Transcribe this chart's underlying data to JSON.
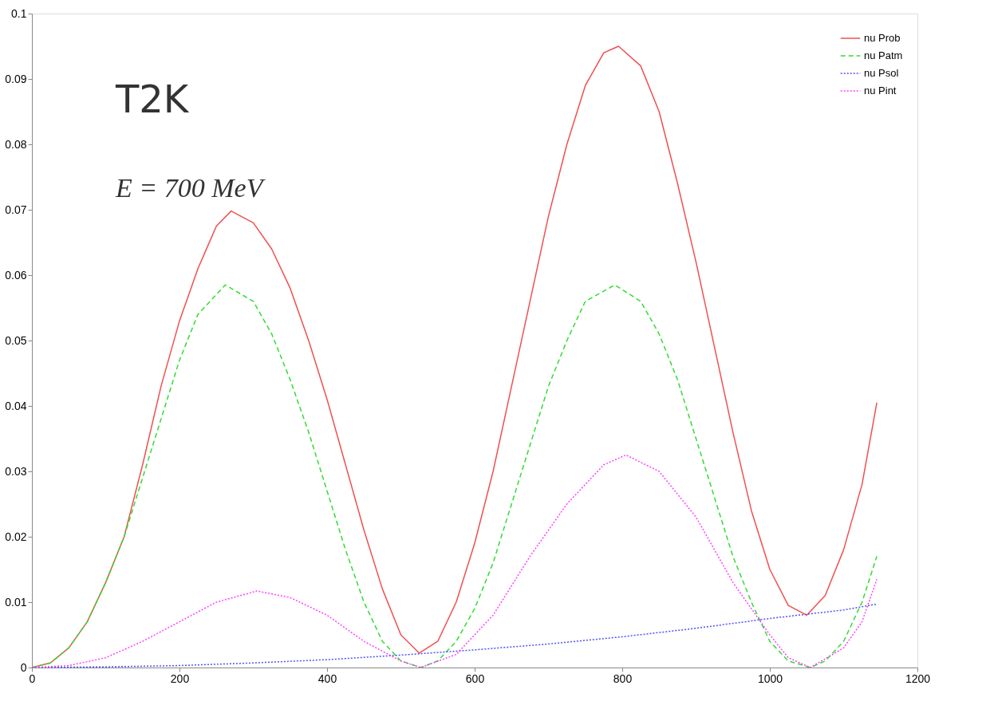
{
  "chart_data": {
    "type": "line",
    "annotations": [
      "T2K",
      "E = 700 MeV"
    ],
    "xlim": [
      0,
      1200
    ],
    "xticks": [
      0,
      200,
      400,
      600,
      800,
      1000,
      1200
    ],
    "ylim": [
      0,
      0.1
    ],
    "yticks": [
      0,
      0.01,
      0.02,
      0.03,
      0.04,
      0.05,
      0.06,
      0.07,
      0.08,
      0.09,
      0.1
    ],
    "grid": false,
    "legend": "top right",
    "marker": "none",
    "series": [
      {
        "name": "nu Prob",
        "color": "#f05050",
        "line_style": "solid",
        "x": [
          0,
          25,
          50,
          75,
          100,
          125,
          150,
          175,
          200,
          225,
          250,
          270,
          300,
          325,
          350,
          375,
          400,
          425,
          450,
          475,
          500,
          525,
          550,
          575,
          600,
          625,
          650,
          675,
          700,
          725,
          750,
          775,
          795,
          825,
          850,
          875,
          900,
          925,
          950,
          975,
          1000,
          1025,
          1050,
          1075,
          1100,
          1125,
          1145
        ],
        "values": [
          0,
          0.0007,
          0.003,
          0.007,
          0.013,
          0.02,
          0.031,
          0.043,
          0.053,
          0.061,
          0.0675,
          0.0698,
          0.068,
          0.064,
          0.058,
          0.05,
          0.041,
          0.031,
          0.021,
          0.012,
          0.005,
          0.0022,
          0.004,
          0.01,
          0.019,
          0.03,
          0.043,
          0.056,
          0.069,
          0.08,
          0.089,
          0.094,
          0.095,
          0.092,
          0.085,
          0.074,
          0.062,
          0.049,
          0.036,
          0.024,
          0.015,
          0.0095,
          0.008,
          0.011,
          0.018,
          0.028,
          0.0405
        ]
      },
      {
        "name": "nu Patm",
        "color": "#30dd30",
        "line_style": "dashed",
        "x": [
          0,
          25,
          50,
          75,
          100,
          125,
          150,
          175,
          200,
          225,
          262,
          300,
          325,
          350,
          375,
          400,
          425,
          450,
          475,
          500,
          527,
          550,
          575,
          600,
          625,
          650,
          675,
          700,
          725,
          750,
          790,
          825,
          850,
          875,
          900,
          925,
          950,
          975,
          1000,
          1025,
          1055,
          1075,
          1100,
          1125,
          1145
        ],
        "values": [
          0,
          0.0007,
          0.003,
          0.007,
          0.013,
          0.02,
          0.029,
          0.038,
          0.047,
          0.054,
          0.0585,
          0.056,
          0.051,
          0.044,
          0.036,
          0.027,
          0.018,
          0.01,
          0.004,
          0.001,
          0,
          0.001,
          0.004,
          0.009,
          0.016,
          0.025,
          0.034,
          0.043,
          0.05,
          0.056,
          0.0585,
          0.056,
          0.051,
          0.044,
          0.035,
          0.026,
          0.017,
          0.01,
          0.004,
          0.001,
          0,
          0.001,
          0.004,
          0.01,
          0.017
        ]
      },
      {
        "name": "nu Psol",
        "color": "#5050ff",
        "line_style": "dotted",
        "x": [
          0,
          100,
          200,
          300,
          400,
          500,
          600,
          700,
          800,
          900,
          1000,
          1100,
          1145
        ],
        "values": [
          0,
          0.0001,
          0.0003,
          0.0007,
          0.0012,
          0.0019,
          0.0027,
          0.0036,
          0.0047,
          0.006,
          0.0075,
          0.0088,
          0.0097
        ]
      },
      {
        "name": "nu Pint",
        "color": "#ff40ff",
        "line_style": "dotted",
        "x": [
          0,
          50,
          100,
          150,
          200,
          250,
          305,
          350,
          400,
          450,
          500,
          527,
          575,
          625,
          675,
          725,
          775,
          805,
          850,
          900,
          950,
          1000,
          1025,
          1055,
          1100,
          1125,
          1145
        ],
        "values": [
          0,
          0.0003,
          0.0015,
          0.004,
          0.007,
          0.01,
          0.0117,
          0.0107,
          0.008,
          0.004,
          0.001,
          0,
          0.002,
          0.008,
          0.017,
          0.025,
          0.031,
          0.0325,
          0.03,
          0.023,
          0.013,
          0.005,
          0.0015,
          0,
          0.003,
          0.007,
          0.0135
        ]
      }
    ]
  }
}
